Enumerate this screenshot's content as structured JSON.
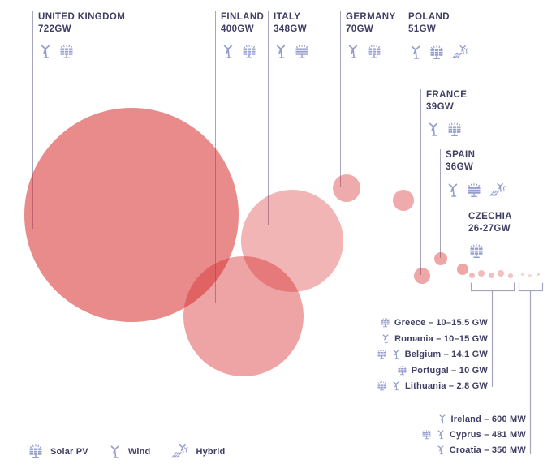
{
  "colors": {
    "text": "#403f63",
    "icon": "#959dce",
    "connector_line": "#a5a5c0",
    "bubble_base": "#d72c2c",
    "bubble_fills": [
      "rgba(215,44,44,0.55)",
      "rgba(215,44,44,0.43)",
      "rgba(215,44,44,0.35)",
      "rgba(215,44,44,0.40)",
      "rgba(215,44,44,0.40)",
      "rgba(215,44,44,0.42)",
      "rgba(215,44,44,0.42)",
      "rgba(215,44,44,0.42)"
    ],
    "dot_fills": [
      "rgba(215,44,44,0.32)",
      "rgba(215,44,44,0.32)",
      "rgba(215,44,44,0.30)",
      "rgba(215,44,44,0.30)",
      "rgba(215,44,44,0.28)",
      "rgba(215,44,44,0.20)",
      "rgba(215,44,44,0.18)",
      "rgba(215,44,44,0.22)"
    ]
  },
  "chart_data": {
    "type": "bubble",
    "unit": "GW",
    "bubbles": [
      {
        "country": "United Kingdom",
        "label": "UNITED KINGDOM",
        "value_label": "722GW",
        "value_gw": 722,
        "technologies": [
          "wind",
          "solar"
        ]
      },
      {
        "country": "Finland",
        "label": "FINLAND",
        "value_label": "400GW",
        "value_gw": 400,
        "technologies": [
          "wind",
          "solar"
        ]
      },
      {
        "country": "Italy",
        "label": "ITALY",
        "value_label": "348GW",
        "value_gw": 348,
        "technologies": [
          "wind",
          "solar"
        ]
      },
      {
        "country": "Germany",
        "label": "GERMANY",
        "value_label": "70GW",
        "value_gw": 70,
        "technologies": [
          "wind",
          "solar"
        ]
      },
      {
        "country": "Poland",
        "label": "POLAND",
        "value_label": "51GW",
        "value_gw": 51,
        "technologies": [
          "wind",
          "solar",
          "hybrid"
        ]
      },
      {
        "country": "France",
        "label": "FRANCE",
        "value_label": "39GW",
        "value_gw": 39,
        "technologies": [
          "wind",
          "solar"
        ]
      },
      {
        "country": "Spain",
        "label": "SPAIN",
        "value_label": "36GW",
        "value_gw": 36,
        "technologies": [
          "wind",
          "solar",
          "hybrid"
        ]
      },
      {
        "country": "Czechia",
        "label": "CZECHIA",
        "value_label": "26-27GW",
        "value_gw": 26.5,
        "technologies": [
          "solar"
        ]
      }
    ],
    "small_groups": [
      {
        "rows": [
          {
            "country": "Greece",
            "label": "Greece – 10–15.5 GW",
            "value": "10–15.5 GW",
            "technologies": [
              "solar"
            ]
          },
          {
            "country": "Romania",
            "label": "Romania – 10–15 GW",
            "value": "10–15 GW",
            "technologies": [
              "wind"
            ]
          },
          {
            "country": "Belgium",
            "label": "Belgium – 14.1 GW",
            "value": "14.1 GW",
            "technologies": [
              "solar",
              "wind"
            ]
          },
          {
            "country": "Portugal",
            "label": "Portugal – 10 GW",
            "value": "10 GW",
            "technologies": [
              "solar"
            ]
          },
          {
            "country": "Lithuania",
            "label": "Lithuania – 2.8 GW",
            "value": "2.8 GW",
            "technologies": [
              "solar",
              "wind"
            ]
          }
        ]
      },
      {
        "rows": [
          {
            "country": "Ireland",
            "label": "Ireland – 600 MW",
            "value": "600 MW",
            "technologies": [
              "wind"
            ]
          },
          {
            "country": "Cyprus",
            "label": "Cyprus – 481 MW",
            "value": "481 MW",
            "technologies": [
              "solar",
              "wind"
            ]
          },
          {
            "country": "Croatia",
            "label": "Croatia – 350 MW",
            "value": "350 MW",
            "technologies": [
              "wind"
            ]
          }
        ]
      }
    ]
  },
  "legend": {
    "items": [
      {
        "id": "solar",
        "label": "Solar PV"
      },
      {
        "id": "wind",
        "label": "Wind"
      },
      {
        "id": "hybrid",
        "label": "Hybrid"
      }
    ]
  }
}
